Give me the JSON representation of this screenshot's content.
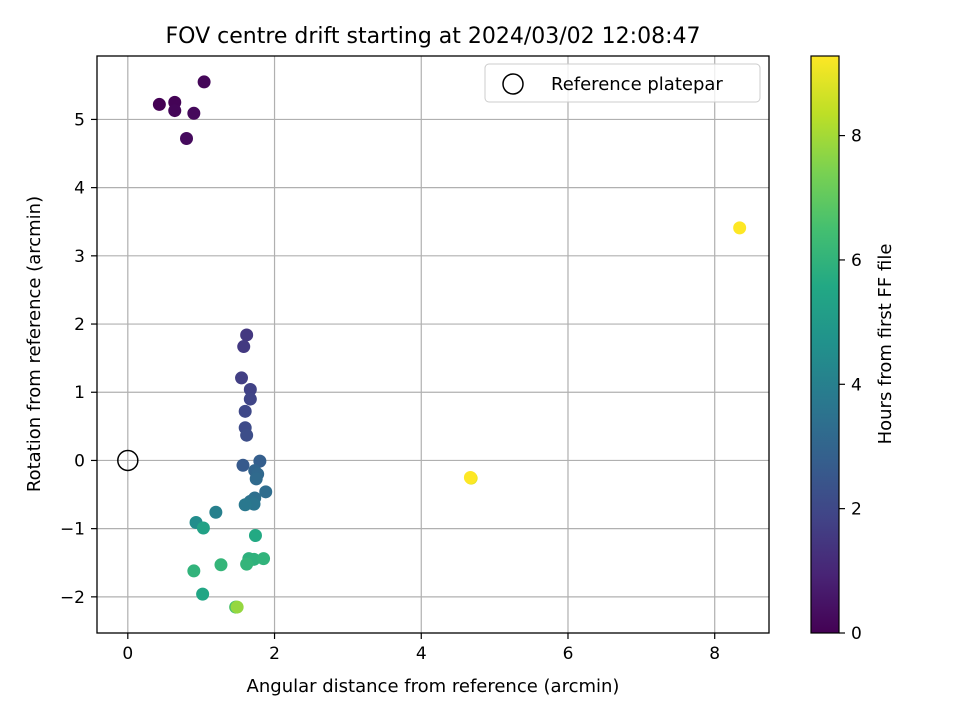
{
  "chart_data": {
    "type": "scatter",
    "title": "FOV centre drift starting at 2024/03/02 12:08:47",
    "xlabel": "Angular distance from reference (arcmin)",
    "ylabel": "Rotation from reference (arcmin)",
    "xlim": [
      -0.42,
      8.74
    ],
    "ylim": [
      -2.53,
      5.93
    ],
    "xticks": [
      0,
      2,
      4,
      6,
      8
    ],
    "yticks": [
      -2,
      -1,
      0,
      1,
      2,
      3,
      4,
      5
    ],
    "grid": true,
    "legend": {
      "position": "top-right",
      "entries": [
        "Reference platepar"
      ]
    },
    "reference_point": {
      "x": 0,
      "y": 0,
      "label": "Reference platepar"
    },
    "colorbar": {
      "label": "Hours from first FF file",
      "range": [
        0,
        9.28
      ],
      "ticks": [
        0,
        2,
        4,
        6,
        8
      ],
      "colormap": "viridis"
    },
    "points": [
      {
        "x": 0.43,
        "y": 5.22,
        "hours": 0.0
      },
      {
        "x": 0.64,
        "y": 5.25,
        "hours": 0.05
      },
      {
        "x": 0.64,
        "y": 5.13,
        "hours": 0.1
      },
      {
        "x": 1.04,
        "y": 5.55,
        "hours": 0.15
      },
      {
        "x": 0.9,
        "y": 5.09,
        "hours": 0.2
      },
      {
        "x": 0.8,
        "y": 4.72,
        "hours": 0.25
      },
      {
        "x": 1.62,
        "y": 1.84,
        "hours": 1.5
      },
      {
        "x": 1.58,
        "y": 1.67,
        "hours": 1.55
      },
      {
        "x": 1.55,
        "y": 1.21,
        "hours": 1.7
      },
      {
        "x": 1.67,
        "y": 1.04,
        "hours": 1.8
      },
      {
        "x": 1.67,
        "y": 0.9,
        "hours": 1.9
      },
      {
        "x": 1.6,
        "y": 0.72,
        "hours": 2.0
      },
      {
        "x": 1.6,
        "y": 0.48,
        "hours": 2.1
      },
      {
        "x": 1.62,
        "y": 0.37,
        "hours": 2.2
      },
      {
        "x": 1.57,
        "y": -0.07,
        "hours": 2.6
      },
      {
        "x": 1.8,
        "y": -0.01,
        "hours": 2.8
      },
      {
        "x": 1.73,
        "y": -0.15,
        "hours": 3.0
      },
      {
        "x": 1.77,
        "y": -0.2,
        "hours": 3.1
      },
      {
        "x": 1.75,
        "y": -0.27,
        "hours": 3.2
      },
      {
        "x": 1.88,
        "y": -0.46,
        "hours": 3.3
      },
      {
        "x": 1.73,
        "y": -0.55,
        "hours": 3.4
      },
      {
        "x": 1.67,
        "y": -0.6,
        "hours": 3.5
      },
      {
        "x": 1.72,
        "y": -0.64,
        "hours": 3.6
      },
      {
        "x": 1.6,
        "y": -0.65,
        "hours": 3.7
      },
      {
        "x": 1.2,
        "y": -0.76,
        "hours": 4.0
      },
      {
        "x": 0.93,
        "y": -0.91,
        "hours": 4.5
      },
      {
        "x": 1.03,
        "y": -0.99,
        "hours": 5.3
      },
      {
        "x": 1.74,
        "y": -1.1,
        "hours": 5.6
      },
      {
        "x": 1.65,
        "y": -1.44,
        "hours": 5.9
      },
      {
        "x": 1.72,
        "y": -1.45,
        "hours": 5.95
      },
      {
        "x": 1.85,
        "y": -1.44,
        "hours": 6.0
      },
      {
        "x": 1.62,
        "y": -1.52,
        "hours": 6.05
      },
      {
        "x": 1.27,
        "y": -1.53,
        "hours": 6.1
      },
      {
        "x": 0.9,
        "y": -1.62,
        "hours": 6.0
      },
      {
        "x": 1.02,
        "y": -1.96,
        "hours": 5.5
      },
      {
        "x": 1.47,
        "y": -2.15,
        "hours": 6.6
      },
      {
        "x": 1.49,
        "y": -2.15,
        "hours": 7.8
      },
      {
        "x": 4.68,
        "y": -0.26,
        "hours": 8.9
      },
      {
        "x": 4.67,
        "y": -0.25,
        "hours": 9.28
      },
      {
        "x": 8.34,
        "y": 3.41,
        "hours": 9.28
      }
    ]
  }
}
